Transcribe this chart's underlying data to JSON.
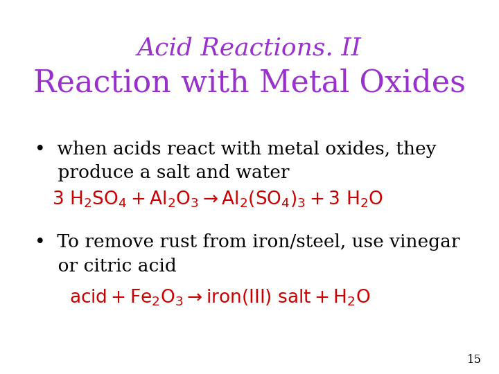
{
  "background_color": "#ffffff",
  "title_line1": "Acid Reactions. II",
  "title_line2": "Reaction with Metal Oxides",
  "title_color": "#9932CC",
  "title_line1_fontsize": 26,
  "title_line2_fontsize": 32,
  "bullet_color": "#000000",
  "bullet_fontsize": 19,
  "equation_color": "#cc0000",
  "equation_fontsize": 19,
  "slide_number": "15",
  "bullet1_line1": "•  when acids react with metal oxides, they",
  "bullet1_line2": "    produce a salt and water",
  "bullet2_line1": "•  To remove rust from iron/steel, use vinegar",
  "bullet2_line2": "    or citric acid",
  "eq1": "$\\mathregular{3\\ H_2SO_4 + Al_2O_3 \\rightarrow Al_2(SO_4)_3 + 3\\ H_2O}$",
  "eq2": "$\\mathregular{acid + Fe_2O_3 \\rightarrow iron(III)\\ salt + H_2O}$",
  "page_number_fontsize": 12,
  "page_number_color": "#000000"
}
